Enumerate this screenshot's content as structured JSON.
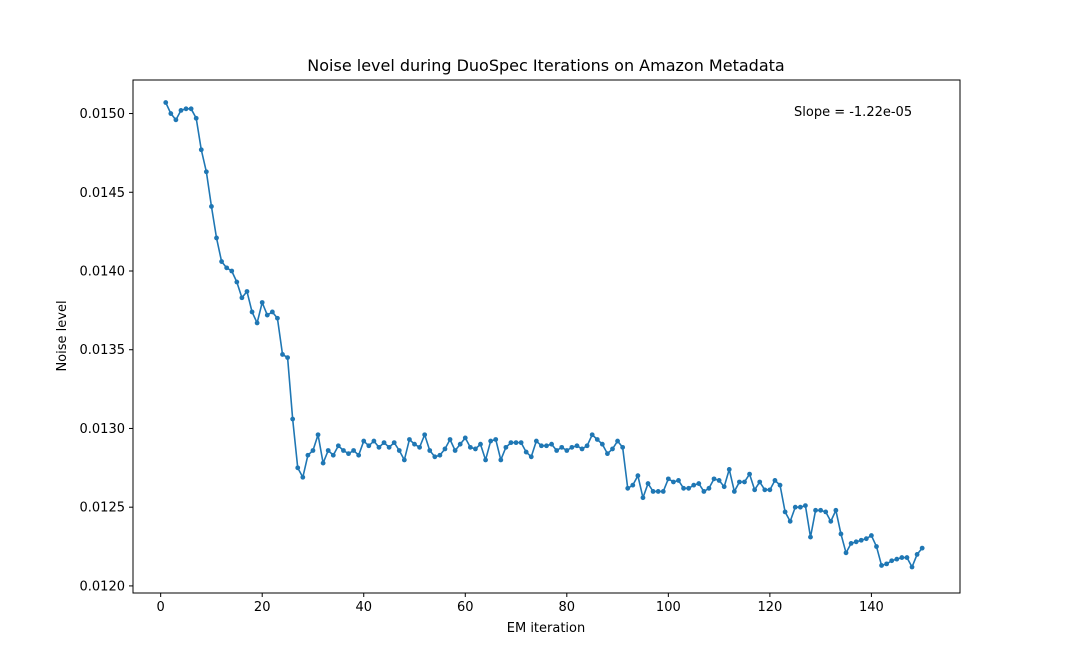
{
  "chart_data": {
    "type": "line",
    "title": "Noise level during DuoSpec Iterations on Amazon Metadata",
    "xlabel": "EM iteration",
    "ylabel": "Noise level",
    "annotation": "Slope = -1.22e-05",
    "xlim": [
      -5.45,
      157.45
    ],
    "ylim": [
      0.011955,
      0.015213
    ],
    "x_ticks": [
      0,
      20,
      40,
      60,
      80,
      100,
      120,
      140
    ],
    "x_tick_labels": [
      "0",
      "20",
      "40",
      "60",
      "80",
      "100",
      "120",
      "140"
    ],
    "y_ticks": [
      0.012,
      0.0125,
      0.013,
      0.0135,
      0.014,
      0.0145,
      0.015
    ],
    "y_tick_labels": [
      "0.0120",
      "0.0125",
      "0.0130",
      "0.0135",
      "0.0140",
      "0.0145",
      "0.0150"
    ],
    "grid": false,
    "colors": {
      "line": "#1f77b4",
      "axes": "#000000",
      "background": "#ffffff"
    },
    "series": [
      {
        "marker": "circle",
        "x": [
          1,
          2,
          3,
          4,
          5,
          6,
          7,
          8,
          9,
          10,
          11,
          12,
          13,
          14,
          15,
          16,
          17,
          18,
          19,
          20,
          21,
          22,
          23,
          24,
          25,
          26,
          27,
          28,
          29,
          30,
          31,
          32,
          33,
          34,
          35,
          36,
          37,
          38,
          39,
          40,
          41,
          42,
          43,
          44,
          45,
          46,
          47,
          48,
          49,
          50,
          51,
          52,
          53,
          54,
          55,
          56,
          57,
          58,
          59,
          60,
          61,
          62,
          63,
          64,
          65,
          66,
          67,
          68,
          69,
          70,
          71,
          72,
          73,
          74,
          75,
          76,
          77,
          78,
          79,
          80,
          81,
          82,
          83,
          84,
          85,
          86,
          87,
          88,
          89,
          90,
          91,
          92,
          93,
          94,
          95,
          96,
          97,
          98,
          99,
          100,
          101,
          102,
          103,
          104,
          105,
          106,
          107,
          108,
          109,
          110,
          111,
          112,
          113,
          114,
          115,
          116,
          117,
          118,
          119,
          120,
          121,
          122,
          123,
          124,
          125,
          126,
          127,
          128,
          129,
          130,
          131,
          132,
          133,
          134,
          135,
          136,
          137,
          138,
          139,
          140,
          141,
          142,
          143,
          144,
          145,
          146,
          147,
          148,
          149,
          150
        ],
        "y": [
          0.01507,
          0.015,
          0.01496,
          0.01502,
          0.01503,
          0.01503,
          0.01497,
          0.01477,
          0.01463,
          0.01441,
          0.01421,
          0.01406,
          0.01402,
          0.014,
          0.01393,
          0.01383,
          0.01387,
          0.01374,
          0.01367,
          0.0138,
          0.01372,
          0.01374,
          0.0137,
          0.01347,
          0.01345,
          0.01306,
          0.01275,
          0.01269,
          0.01283,
          0.01286,
          0.01296,
          0.01278,
          0.01286,
          0.01283,
          0.01289,
          0.01286,
          0.01284,
          0.01286,
          0.01283,
          0.01292,
          0.01289,
          0.01292,
          0.01288,
          0.01291,
          0.01288,
          0.01291,
          0.01286,
          0.0128,
          0.01293,
          0.0129,
          0.01288,
          0.01296,
          0.01286,
          0.01282,
          0.01283,
          0.01287,
          0.01293,
          0.01286,
          0.0129,
          0.01294,
          0.01288,
          0.01287,
          0.0129,
          0.0128,
          0.01292,
          0.01293,
          0.0128,
          0.01288,
          0.01291,
          0.01291,
          0.01291,
          0.01285,
          0.01282,
          0.01292,
          0.01289,
          0.01289,
          0.0129,
          0.01286,
          0.01288,
          0.01286,
          0.01288,
          0.01289,
          0.01287,
          0.01289,
          0.01296,
          0.01293,
          0.0129,
          0.01284,
          0.01287,
          0.01292,
          0.01288,
          0.01262,
          0.01264,
          0.0127,
          0.01256,
          0.01265,
          0.0126,
          0.0126,
          0.0126,
          0.01268,
          0.01266,
          0.01267,
          0.01262,
          0.01262,
          0.01264,
          0.01265,
          0.0126,
          0.01262,
          0.01268,
          0.01267,
          0.01263,
          0.01274,
          0.0126,
          0.01266,
          0.01266,
          0.01271,
          0.01261,
          0.01266,
          0.01261,
          0.01261,
          0.01267,
          0.01264,
          0.01247,
          0.01241,
          0.0125,
          0.0125,
          0.01251,
          0.01231,
          0.01248,
          0.01248,
          0.01247,
          0.01241,
          0.01248,
          0.01233,
          0.01221,
          0.01227,
          0.01228,
          0.01229,
          0.0123,
          0.01232,
          0.01225,
          0.01213,
          0.01214,
          0.01216,
          0.01217,
          0.01218,
          0.01218,
          0.01212,
          0.0122,
          0.01224
        ]
      }
    ]
  }
}
